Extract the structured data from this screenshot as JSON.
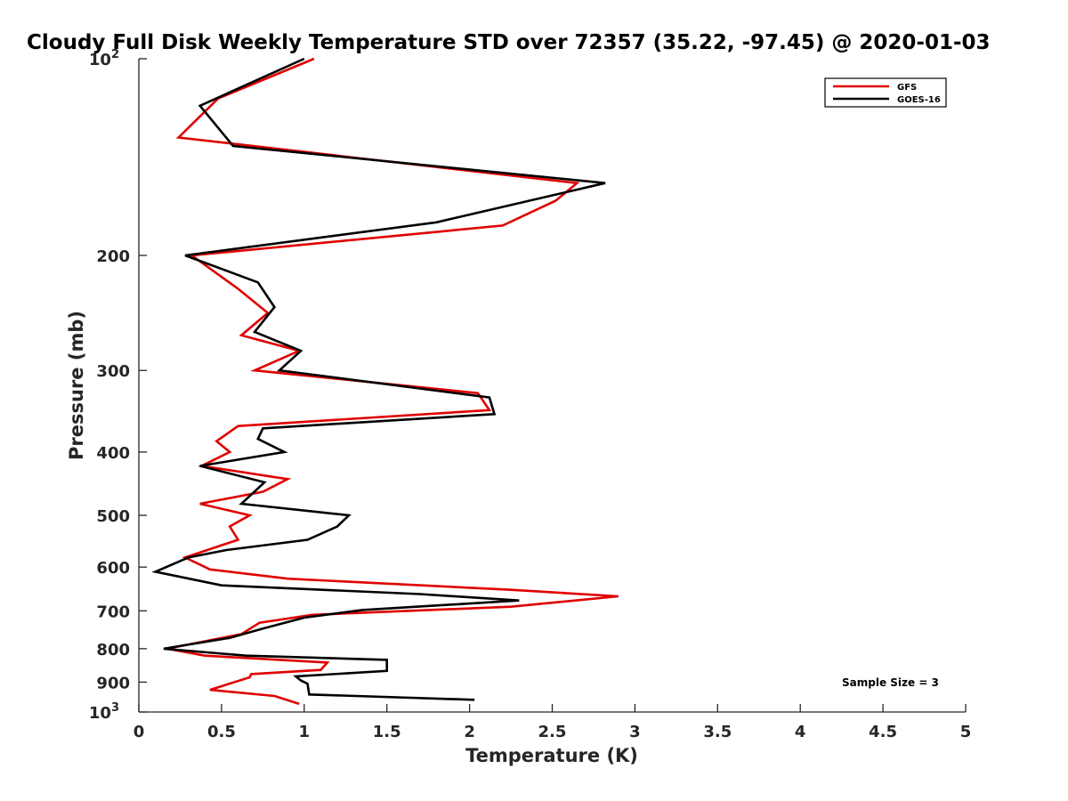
{
  "chart_data": {
    "type": "line",
    "title": "Cloudy Full Disk Weekly Temperature STD over 72357 (35.22, -97.45) @ 2020-01-03",
    "xlabel": "Temperature (K)",
    "ylabel": "Pressure (mb)",
    "xlim": [
      0,
      5
    ],
    "ylim": [
      100,
      1000
    ],
    "y_scale": "log",
    "y_reversed": true,
    "x_ticks": [
      "0",
      "0.5",
      "1",
      "1.5",
      "2",
      "2.5",
      "3",
      "3.5",
      "4",
      "4.5",
      "5"
    ],
    "y_ticks": [
      {
        "value": 100,
        "base": "10",
        "exp": "2"
      },
      {
        "value": 200,
        "label": "200"
      },
      {
        "value": 300,
        "label": "300"
      },
      {
        "value": 400,
        "label": "400"
      },
      {
        "value": 500,
        "label": "500"
      },
      {
        "value": 600,
        "label": "600"
      },
      {
        "value": 700,
        "label": "700"
      },
      {
        "value": 800,
        "label": "800"
      },
      {
        "value": 900,
        "label": "900"
      },
      {
        "value": 1000,
        "base": "10",
        "exp": "3"
      }
    ],
    "grid": false,
    "legend_position": "top-right",
    "annotation": "Sample Size = 3",
    "series": [
      {
        "name": "GFS",
        "color": "#e00000",
        "points": [
          [
            1.06,
            100
          ],
          [
            0.48,
            115
          ],
          [
            0.24,
            132
          ],
          [
            2.65,
            155
          ],
          [
            2.52,
            165
          ],
          [
            2.2,
            180
          ],
          [
            0.32,
            200
          ],
          [
            0.6,
            225
          ],
          [
            0.78,
            245
          ],
          [
            0.62,
            265
          ],
          [
            0.97,
            280
          ],
          [
            0.7,
            300
          ],
          [
            2.05,
            325
          ],
          [
            2.12,
            345
          ],
          [
            0.6,
            365
          ],
          [
            0.47,
            385
          ],
          [
            0.55,
            400
          ],
          [
            0.38,
            420
          ],
          [
            0.9,
            440
          ],
          [
            0.75,
            460
          ],
          [
            0.37,
            480
          ],
          [
            0.67,
            500
          ],
          [
            0.55,
            520
          ],
          [
            0.6,
            545
          ],
          [
            0.28,
            580
          ],
          [
            0.43,
            605
          ],
          [
            0.9,
            625
          ],
          [
            2.25,
            650
          ],
          [
            2.9,
            665
          ],
          [
            2.25,
            690
          ],
          [
            1.05,
            710
          ],
          [
            0.73,
            730
          ],
          [
            0.62,
            760
          ],
          [
            0.17,
            800
          ],
          [
            0.4,
            820
          ],
          [
            1.14,
            840
          ],
          [
            1.1,
            862
          ],
          [
            0.68,
            875
          ],
          [
            0.67,
            885
          ],
          [
            0.43,
            925
          ],
          [
            0.82,
            945
          ],
          [
            0.97,
            972
          ]
        ]
      },
      {
        "name": "GOES-16",
        "color": "#000000",
        "points": [
          [
            1.0,
            100
          ],
          [
            0.37,
            118
          ],
          [
            0.57,
            136
          ],
          [
            2.82,
            155
          ],
          [
            1.8,
            178
          ],
          [
            0.28,
            200
          ],
          [
            0.72,
            220
          ],
          [
            0.82,
            240
          ],
          [
            0.7,
            262
          ],
          [
            0.98,
            280
          ],
          [
            0.85,
            300
          ],
          [
            2.12,
            330
          ],
          [
            2.15,
            350
          ],
          [
            0.75,
            368
          ],
          [
            0.72,
            382
          ],
          [
            0.88,
            400
          ],
          [
            0.37,
            420
          ],
          [
            0.76,
            445
          ],
          [
            0.62,
            480
          ],
          [
            1.27,
            500
          ],
          [
            1.2,
            520
          ],
          [
            1.02,
            545
          ],
          [
            0.53,
            565
          ],
          [
            0.3,
            580
          ],
          [
            0.1,
            610
          ],
          [
            0.5,
            640
          ],
          [
            1.7,
            660
          ],
          [
            2.3,
            675
          ],
          [
            1.35,
            698
          ],
          [
            1.0,
            717
          ],
          [
            0.75,
            745
          ],
          [
            0.55,
            770
          ],
          [
            0.15,
            800
          ],
          [
            0.65,
            820
          ],
          [
            1.5,
            832
          ],
          [
            1.5,
            865
          ],
          [
            0.95,
            882
          ],
          [
            0.98,
            895
          ],
          [
            1.02,
            905
          ],
          [
            1.03,
            940
          ],
          [
            2.03,
            958
          ]
        ]
      }
    ]
  }
}
